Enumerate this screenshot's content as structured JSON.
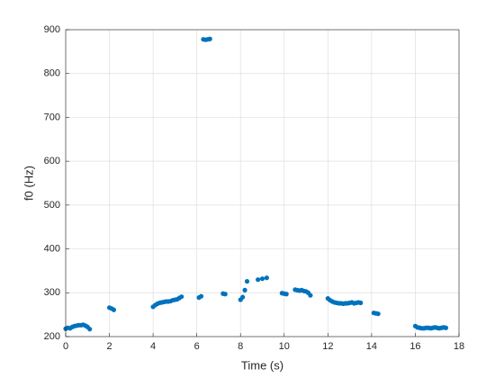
{
  "chart_data": {
    "type": "scatter",
    "xlabel": "Time (s)",
    "ylabel": "f0 (Hz)",
    "x": [
      0.0,
      0.1,
      0.2,
      0.3,
      0.4,
      0.5,
      0.6,
      0.7,
      0.8,
      0.9,
      1.0,
      1.1,
      2.0,
      2.1,
      2.2,
      4.0,
      4.1,
      4.2,
      4.3,
      4.4,
      4.5,
      4.6,
      4.7,
      4.8,
      4.9,
      5.0,
      5.1,
      5.2,
      5.3,
      6.1,
      6.2,
      6.3,
      6.4,
      6.5,
      6.6,
      7.2,
      7.3,
      8.0,
      8.1,
      8.2,
      8.3,
      8.8,
      9.0,
      9.2,
      9.9,
      10.0,
      10.1,
      10.5,
      10.6,
      10.7,
      10.8,
      10.9,
      11.0,
      11.1,
      11.2,
      12.0,
      12.1,
      12.2,
      12.3,
      12.4,
      12.5,
      12.6,
      12.7,
      12.8,
      12.9,
      13.0,
      13.1,
      13.2,
      13.3,
      13.4,
      13.5,
      14.1,
      14.2,
      14.3,
      16.0,
      16.1,
      16.2,
      16.3,
      16.4,
      16.5,
      16.6,
      16.7,
      16.8,
      16.9,
      17.0,
      17.1,
      17.2,
      17.3,
      17.4
    ],
    "values": [
      218,
      220,
      219,
      222,
      224,
      225,
      226,
      226,
      227,
      225,
      222,
      217,
      266,
      264,
      261,
      268,
      272,
      275,
      277,
      278,
      279,
      280,
      280,
      281,
      283,
      284,
      285,
      288,
      291,
      289,
      292,
      878,
      877,
      878,
      879,
      298,
      297,
      284,
      290,
      306,
      326,
      330,
      332,
      334,
      299,
      298,
      297,
      307,
      306,
      305,
      306,
      304,
      303,
      300,
      294,
      287,
      283,
      280,
      278,
      277,
      276,
      276,
      275,
      276,
      276,
      277,
      278,
      276,
      277,
      278,
      277,
      254,
      253,
      252,
      224,
      221,
      220,
      219,
      219,
      220,
      220,
      219,
      220,
      221,
      220,
      219,
      220,
      221,
      220
    ],
    "color": "#0072BD",
    "xlim": [
      0,
      18
    ],
    "xticks": [
      0,
      2,
      4,
      6,
      8,
      10,
      12,
      14,
      16,
      18
    ],
    "ylim": [
      200,
      900
    ],
    "yticks": [
      200,
      300,
      400,
      500,
      600,
      700,
      800,
      900
    ],
    "grid": true
  }
}
